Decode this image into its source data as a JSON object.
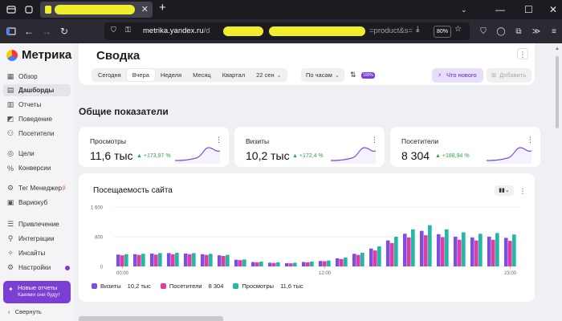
{
  "browser": {
    "url_host": "metrika.yandex.ru",
    "url_path_tail": "=product&s=",
    "zoom_level": "80%"
  },
  "app": {
    "name": "Метрика"
  },
  "sidebar": {
    "items": [
      {
        "label": "Обзор",
        "icon": "grid-icon",
        "active": false
      },
      {
        "label": "Дашборды",
        "icon": "dashboard-icon",
        "active": true
      },
      {
        "label": "Отчеты",
        "icon": "reports-icon",
        "active": false
      },
      {
        "label": "Поведение",
        "icon": "behavior-icon",
        "active": false
      },
      {
        "label": "Посетители",
        "icon": "users-icon",
        "active": false
      },
      {
        "label": "Цели",
        "icon": "target-icon",
        "active": false
      },
      {
        "label": "Конверсии",
        "icon": "percent-icon",
        "active": false
      },
      {
        "label": "Тег Менеджер",
        "icon": "tag-icon",
        "active": false,
        "beta": "β"
      },
      {
        "label": "Вариокуб",
        "icon": "cube-icon",
        "active": false
      },
      {
        "label": "Привлечение",
        "icon": "traffic-icon",
        "active": false
      },
      {
        "label": "Интеграции",
        "icon": "integrations-icon",
        "active": false
      },
      {
        "label": "Инсайты",
        "icon": "insights-icon",
        "active": false
      },
      {
        "label": "Настройки",
        "icon": "settings-icon",
        "active": false
      }
    ],
    "promo": {
      "title": "Новые отчеты",
      "subtitle": "Какими они будут"
    },
    "collapse_label": "Свернуть"
  },
  "header": {
    "title": "Сводка",
    "periods": [
      "Сегодня",
      "Вчера",
      "Неделя",
      "Месяц",
      "Квартал",
      "22 сен"
    ],
    "active_period": "Вчера",
    "grouping": "По часам",
    "filter_badge": "100%",
    "whats_new_label": "Что нового",
    "add_label": "Добавить"
  },
  "overview": {
    "title": "Общие показатели",
    "metrics": [
      {
        "label": "Просмотры",
        "value": "11,6 тыс",
        "delta": "▲ +173,97 %"
      },
      {
        "label": "Визиты",
        "value": "10,2 тыс",
        "delta": "▲ +172,4 %"
      },
      {
        "label": "Посетители",
        "value": "8 304",
        "delta": "▲ +188,94 %"
      }
    ]
  },
  "chart_card": {
    "title": "Посещаемость сайта",
    "legend": [
      {
        "name": "Визиты",
        "value": "10,2 тыс",
        "color": "#7b4fe0"
      },
      {
        "name": "Посетители",
        "value": "8 304",
        "color": "#e23ca3"
      },
      {
        "name": "Просмотры",
        "value": "11,6 тыс",
        "color": "#22b8a5"
      }
    ]
  },
  "chart_data": {
    "type": "bar",
    "x_tick_labels": [
      "00:00",
      "12:00",
      "23:00"
    ],
    "y_tick_labels": [
      "0",
      "800",
      "1 600"
    ],
    "ylim": [
      0,
      1600
    ],
    "categories": [
      "0",
      "1",
      "2",
      "3",
      "4",
      "5",
      "6",
      "7",
      "8",
      "9",
      "10",
      "11",
      "12",
      "13",
      "14",
      "15",
      "16",
      "17",
      "18",
      "19",
      "20",
      "21",
      "22",
      "23"
    ],
    "series": [
      {
        "name": "Визиты",
        "color": "#7b4fe0",
        "values": [
          320,
          330,
          350,
          360,
          350,
          330,
          300,
          180,
          120,
          100,
          90,
          120,
          150,
          220,
          340,
          480,
          700,
          880,
          960,
          870,
          800,
          780,
          800,
          770
        ]
      },
      {
        "name": "Посетители",
        "color": "#e23ca3",
        "values": [
          300,
          310,
          320,
          330,
          330,
          310,
          280,
          170,
          110,
          95,
          85,
          110,
          140,
          200,
          310,
          430,
          630,
          780,
          840,
          790,
          720,
          700,
          720,
          690
        ]
      },
      {
        "name": "Просмотры",
        "color": "#22b8a5",
        "values": [
          330,
          340,
          360,
          370,
          360,
          340,
          310,
          190,
          130,
          110,
          100,
          130,
          160,
          240,
          370,
          540,
          800,
          1000,
          1110,
          1000,
          920,
          880,
          900,
          860
        ]
      }
    ],
    "grid": true,
    "legend_position": "bottom-left"
  },
  "colors": {
    "accent": "#7d3ddb",
    "delta_positive": "#2ba44a",
    "highlight": "#f0ee2c"
  }
}
